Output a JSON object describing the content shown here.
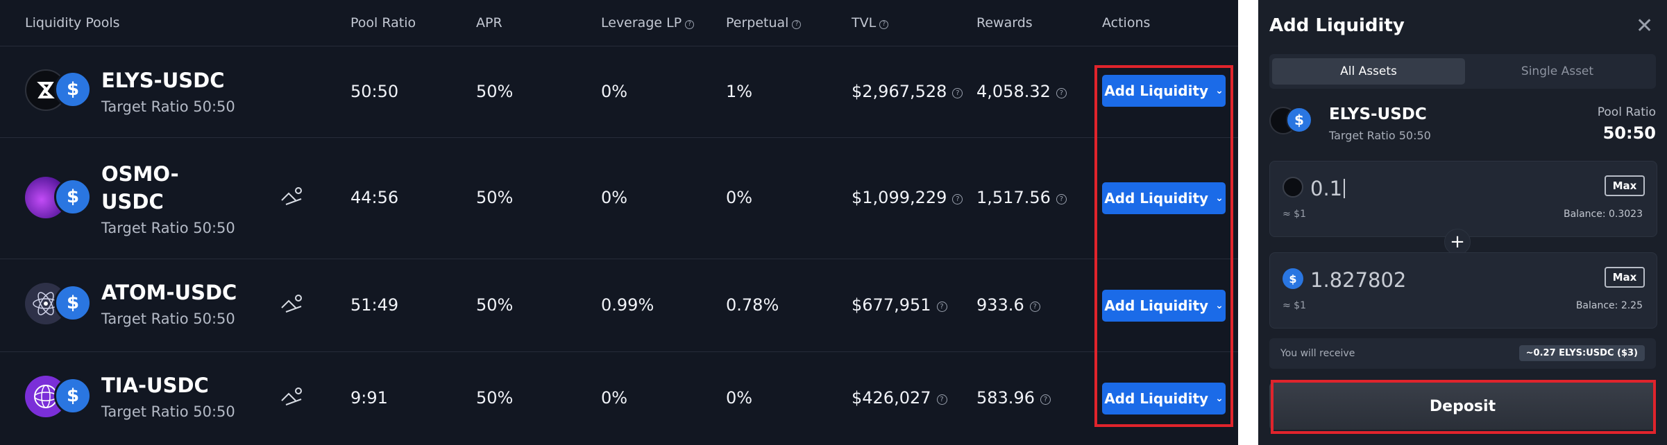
{
  "table": {
    "headers": {
      "pools": "Liquidity Pools",
      "ratio": "Pool Ratio",
      "apr": "APR",
      "leverage": "Leverage LP",
      "perpetual": "Perpetual",
      "tvl": "TVL",
      "rewards": "Rewards",
      "actions": "Actions"
    },
    "rows": [
      {
        "name": "ELYS-USDC",
        "target": "Target Ratio 50:50",
        "ratio": "50:50",
        "apr": "50%",
        "leverage": "0%",
        "perpetual": "1%",
        "tvl": "$2,967,528",
        "rewards": "4,058.32",
        "action": "Add Liquidity"
      },
      {
        "name": "OSMO-USDC",
        "target": "Target Ratio 50:50",
        "ratio": "44:56",
        "apr": "50%",
        "leverage": "0%",
        "perpetual": "0%",
        "tvl": "$1,099,229",
        "rewards": "1,517.56",
        "action": "Add Liquidity"
      },
      {
        "name": "ATOM-USDC",
        "target": "Target Ratio 50:50",
        "ratio": "51:49",
        "apr": "50%",
        "leverage": "0.99%",
        "perpetual": "0.78%",
        "tvl": "$677,951",
        "rewards": "933.6",
        "action": "Add Liquidity"
      },
      {
        "name": "TIA-USDC",
        "target": "Target Ratio 50:50",
        "ratio": "9:91",
        "apr": "50%",
        "leverage": "0%",
        "perpetual": "0%",
        "tvl": "$426,027",
        "rewards": "583.96",
        "action": "Add Liquidity"
      }
    ]
  },
  "modal": {
    "title": "Add Liquidity",
    "tabs": [
      "All Assets",
      "Single Asset"
    ],
    "pool": {
      "name": "ELYS-USDC",
      "target": "Target Ratio 50:50",
      "ratio_label": "Pool Ratio",
      "ratio": "50:50"
    },
    "input1": {
      "amount": "0.1",
      "usd": "≈ $1",
      "max": "Max",
      "balance": "Balance: 0.3023"
    },
    "input2": {
      "amount": "1.827802",
      "usd": "≈ $1",
      "max": "Max",
      "balance": "Balance: 2.25"
    },
    "receive_label": "You will receive",
    "receive_value": "~0.27 ELYS:USDC ($3)",
    "deposit_label": "Deposit"
  },
  "colors": {
    "accent": "#1b6be8",
    "highlight": "#e0242c",
    "panel": "#121722"
  }
}
